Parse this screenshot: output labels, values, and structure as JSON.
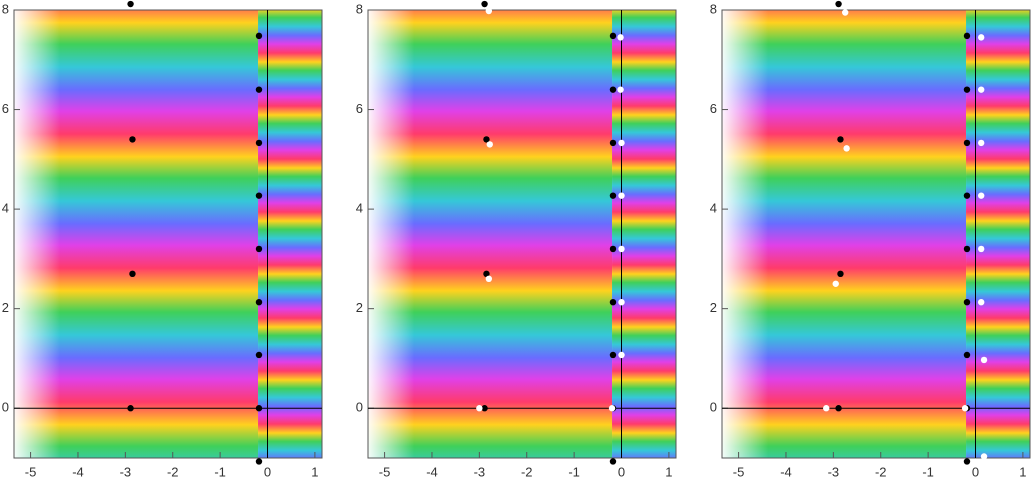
{
  "chart_data": [
    {
      "type": "scatter",
      "xlim": [
        -5.35,
        1.15
      ],
      "ylim": [
        -1,
        8
      ],
      "xticks": [
        -5,
        -4,
        -3,
        -2,
        -1,
        0,
        1
      ],
      "yticks": [
        0,
        2,
        4,
        6,
        8
      ],
      "series": [
        {
          "color": "#000000",
          "x": [
            -2.89,
            -2.85,
            -2.85,
            -2.89,
            -0.18,
            -0.18,
            -0.18,
            -0.18,
            -0.18,
            -0.18,
            -0.18,
            -0.18,
            -0.18
          ],
          "y": [
            8.12,
            5.4,
            2.7,
            0,
            7.48,
            6.4,
            5.33,
            4.27,
            3.2,
            2.13,
            1.07,
            0,
            -1.07
          ]
        }
      ]
    },
    {
      "type": "scatter",
      "xlim": [
        -5.35,
        1.15
      ],
      "ylim": [
        -1,
        8
      ],
      "xticks": [
        -5,
        -4,
        -3,
        -2,
        -1,
        0,
        1
      ],
      "yticks": [
        0,
        2,
        4,
        6,
        8
      ],
      "series": [
        {
          "color": "#000000",
          "x": [
            -2.89,
            -2.85,
            -2.85,
            -2.89,
            -0.18,
            -0.18,
            -0.18,
            -0.18,
            -0.18,
            -0.18,
            -0.18,
            -0.18,
            -0.18
          ],
          "y": [
            8.12,
            5.4,
            2.7,
            0,
            7.48,
            6.4,
            5.33,
            4.27,
            3.2,
            2.13,
            1.07,
            0,
            -1.07
          ]
        },
        {
          "color": "#ffffff",
          "x": [
            -2.8,
            -2.78,
            -2.8,
            -3.0,
            -0.02,
            -0.02,
            0,
            0,
            0,
            0,
            0,
            -0.2
          ],
          "y": [
            7.98,
            5.3,
            2.6,
            0,
            7.45,
            6.4,
            5.33,
            4.27,
            3.2,
            2.13,
            1.07,
            0
          ]
        }
      ]
    },
    {
      "type": "scatter",
      "xlim": [
        -5.35,
        1.15
      ],
      "ylim": [
        -1,
        8
      ],
      "xticks": [
        -5,
        -4,
        -3,
        -2,
        -1,
        0,
        1
      ],
      "yticks": [
        0,
        2,
        4,
        6,
        8
      ],
      "series": [
        {
          "color": "#000000",
          "x": [
            -2.89,
            -2.85,
            -2.85,
            -2.89,
            -0.18,
            -0.18,
            -0.18,
            -0.18,
            -0.18,
            -0.18,
            -0.18,
            -0.18,
            -0.18
          ],
          "y": [
            8.12,
            5.4,
            2.7,
            0,
            7.48,
            6.4,
            5.33,
            4.27,
            3.2,
            2.13,
            1.07,
            0,
            -1.07
          ]
        },
        {
          "color": "#ffffff",
          "x": [
            -2.75,
            -2.72,
            -2.95,
            -3.15,
            0.12,
            0.12,
            0.12,
            0.12,
            0.12,
            0.12,
            0.18,
            -0.22,
            0.18
          ],
          "y": [
            7.95,
            5.22,
            2.5,
            0,
            7.45,
            6.4,
            5.33,
            4.27,
            3.2,
            2.13,
            0.97,
            0,
            -0.97
          ]
        }
      ]
    }
  ]
}
